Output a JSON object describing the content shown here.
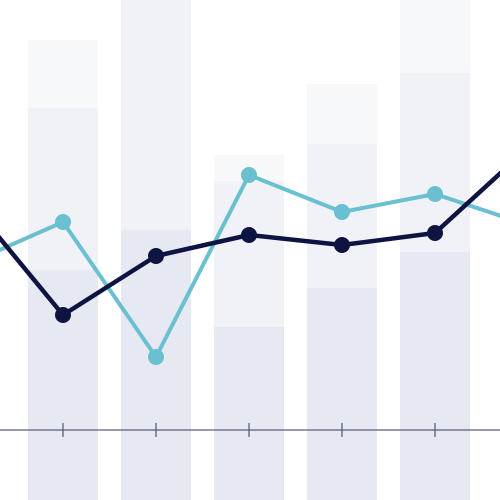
{
  "chart_data": {
    "type": "bar",
    "grid": false,
    "legend": "none",
    "x": [
      0,
      1,
      2,
      3,
      4,
      5,
      6,
      7
    ],
    "ylim": [
      0,
      500
    ],
    "bars": {
      "x": [
        1,
        2,
        3,
        4,
        5
      ],
      "stack": [
        {
          "values": [
            160,
            200,
            103,
            142,
            178
          ],
          "color": "#e6e9f1"
        },
        {
          "values": [
            162,
            243,
            146,
            144,
            179
          ],
          "color": "#f1f2f7"
        },
        {
          "values": [
            68,
            58,
            26,
            60,
            75
          ],
          "color": "#f7f8f9"
        }
      ]
    },
    "series": [
      {
        "values": [
          167,
          208,
          73,
          255,
          218,
          236,
          205,
          143
        ],
        "color": "#6abfd0"
      },
      {
        "values": [
          228,
          115,
          174,
          195,
          185,
          197,
          282,
          282
        ],
        "color": "#0e1442"
      }
    ],
    "x_ticks": [
      1,
      2,
      3,
      4,
      5
    ],
    "axis_color": "#5a5f78"
  }
}
